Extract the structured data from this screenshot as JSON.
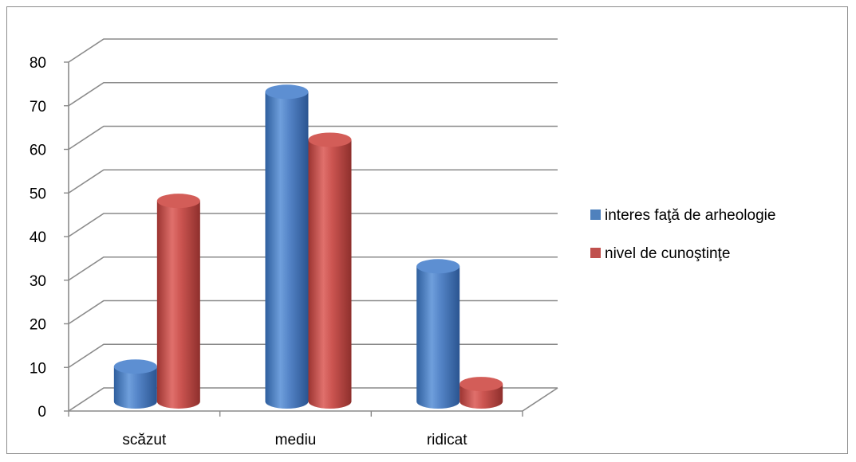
{
  "chart_data": {
    "type": "bar",
    "categories": [
      "scăzut",
      "mediu",
      "ridicat"
    ],
    "series": [
      {
        "name": "interes faţă de arheologie",
        "values": [
          8,
          71,
          31
        ],
        "color": "#4f81bd"
      },
      {
        "name": "nivel de cunoştinţe",
        "values": [
          46,
          60,
          4
        ],
        "color": "#c0504d"
      }
    ],
    "ylim": [
      0,
      80
    ],
    "yticks": [
      0,
      10,
      20,
      30,
      40,
      50,
      60,
      70,
      80
    ],
    "grid": true,
    "legend_position": "right",
    "style": "3d-cylinder"
  }
}
